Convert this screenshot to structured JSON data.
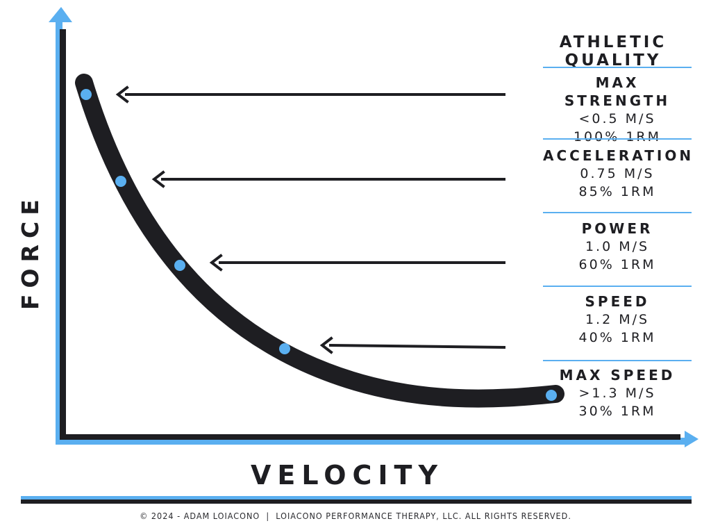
{
  "axes": {
    "y_title": "FORCE",
    "x_title": "VELOCITY"
  },
  "panel": {
    "heading": "ATHLETIC QUALITY",
    "qualities": [
      {
        "name": "MAX STRENGTH",
        "velocity": "<0.5 M/S",
        "load": "100% 1RM"
      },
      {
        "name": "ACCELERATION",
        "velocity": "0.75 M/S",
        "load": "85% 1RM"
      },
      {
        "name": "POWER",
        "velocity": "1.0 M/S",
        "load": "60% 1RM"
      },
      {
        "name": "SPEED",
        "velocity": "1.2 M/S",
        "load": "40% 1RM"
      },
      {
        "name": "MAX SPEED",
        "velocity": ">1.3 M/S",
        "load": "30% 1RM"
      }
    ]
  },
  "colors": {
    "accent_blue": "#5aaff0",
    "ink": "#1e1e22"
  },
  "footer": {
    "text": "© 2024 - ADAM LOIACONO  |  LOIACONO PERFORMANCE THERAPY, LLC. ALL RIGHTS RESERVED."
  }
}
